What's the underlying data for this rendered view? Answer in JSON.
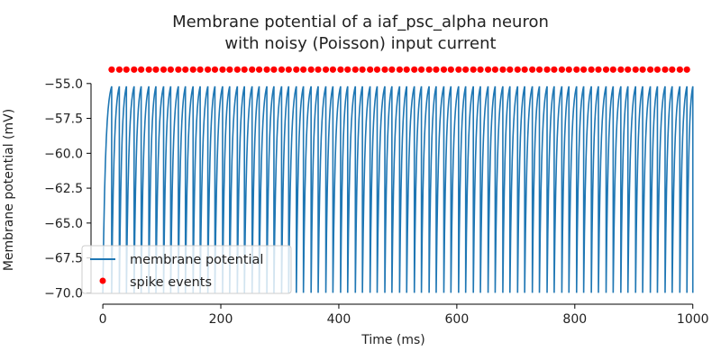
{
  "chart_data": {
    "type": "line",
    "title": "Membrane potential of a iaf_psc_alpha neuron",
    "subtitle": "with noisy (Poisson) input current",
    "xlabel": "Time (ms)",
    "ylabel": "Membrane potential (mV)",
    "xlim": [
      -20,
      1005
    ],
    "ylim": [
      -70.3,
      -53.4
    ],
    "xticks": [
      0,
      200,
      400,
      600,
      800,
      1000
    ],
    "xtick_labels": [
      "0",
      "200",
      "400",
      "600",
      "800",
      "1000"
    ],
    "yticks": [
      -55.0,
      -57.5,
      -60.0,
      -62.5,
      -65.0,
      -67.5,
      -70.0
    ],
    "ytick_labels": [
      "−55.0",
      "−57.5",
      "−60.0",
      "−62.5",
      "−65.0",
      "−67.5",
      "−70.0"
    ],
    "grid": false,
    "legend_position": "bottom-left",
    "reset_potential": -70.0,
    "threshold_approx": -55.2,
    "series": [
      {
        "name": "membrane potential",
        "kind": "line",
        "color": "#1f77b4",
        "description": "sawtooth: rises from -70 to ~-55.2 then resets to -70 at each spike"
      },
      {
        "name": "spike events",
        "kind": "scatter",
        "color": "#ff0000",
        "y": -54.0,
        "x": [
          15,
          28,
          40,
          53,
          65,
          78,
          90,
          103,
          115,
          128,
          140,
          153,
          165,
          178,
          190,
          203,
          215,
          228,
          240,
          253,
          265,
          278,
          290,
          303,
          315,
          328,
          340,
          353,
          365,
          378,
          390,
          403,
          415,
          428,
          440,
          453,
          465,
          478,
          490,
          503,
          515,
          528,
          540,
          553,
          565,
          578,
          590,
          603,
          615,
          628,
          640,
          653,
          665,
          678,
          690,
          703,
          715,
          728,
          740,
          753,
          765,
          778,
          790,
          803,
          815,
          828,
          840,
          853,
          865,
          878,
          890,
          903,
          915,
          928,
          940,
          953,
          965,
          978,
          990
        ]
      }
    ]
  }
}
